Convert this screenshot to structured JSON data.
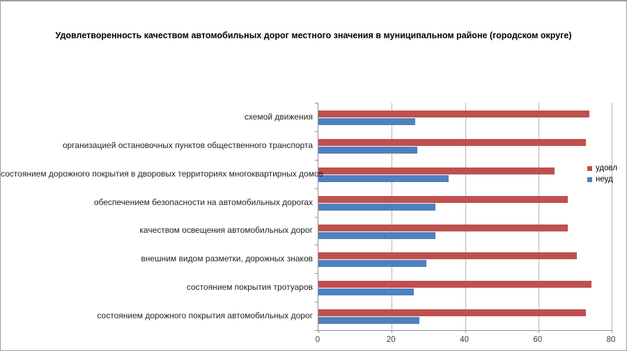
{
  "window": {
    "background": "#ffffff",
    "frame_border_color": "#9b9b9b"
  },
  "chart_data": {
    "type": "bar",
    "orientation": "horizontal",
    "title": "Удовлетворенность качеством автомобильных дорог местного значения в муниципальном районе (городском округе)",
    "categories": [
      "схемой движения",
      "организацией остановочных пунктов общественного транспорта",
      "состоянием дорожного покрытия в дворовых территориях многоквартирных домов",
      "обеспечением безопасности на автомобильных дорогах",
      "качеством освещения автомобильных дорог",
      "внешним видом разметки, дорожных знаков",
      "состоянием покрытия тротуаров",
      "состоянием дорожного покрытия автомобильных дорог"
    ],
    "series": [
      {
        "name": "удовл",
        "color": "#c0504d",
        "values": [
          74,
          73,
          64.5,
          68,
          68,
          70.5,
          74.5,
          73
        ]
      },
      {
        "name": "неуд",
        "color": "#4f81bd",
        "values": [
          26.5,
          27,
          35.5,
          32,
          32,
          29.5,
          26,
          27.5
        ]
      }
    ],
    "x_axis": {
      "min": 0,
      "max": 80,
      "ticks": [
        0,
        20,
        40,
        60,
        80
      ]
    },
    "grid": "vertical-gridlines-on",
    "legend_position": "right",
    "colors": {
      "gridline": "#b3b3b3",
      "axis_line": "#8f8f8f",
      "title_text": "#000000",
      "category_text": "#1f1f1f",
      "tick_text": "#3d3d3d"
    }
  }
}
